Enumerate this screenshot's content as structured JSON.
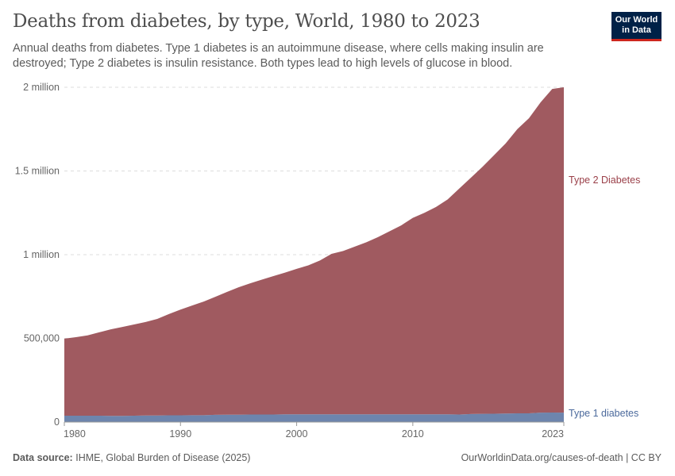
{
  "header": {
    "title": "Deaths from diabetes, by type, World, 1980 to 2023",
    "subtitle": "Annual deaths from diabetes. Type 1 diabetes is an autoimmune disease, where cells making insulin are destroyed; Type 2 diabetes is insulin resistance. Both types lead to high levels of glucose in blood.",
    "logo": "Our World in Data"
  },
  "footer": {
    "source_label": "Data source:",
    "source": "IHME, Global Burden of Disease (2025)",
    "url": "OurWorldinData.org/causes-of-death | CC BY"
  },
  "chart_data": {
    "type": "area",
    "stacked": true,
    "title": "Deaths from diabetes, by type, World, 1980 to 2023",
    "xlim": [
      1980,
      2023
    ],
    "ylim": [
      0,
      2000000
    ],
    "x_ticks": [
      {
        "value": 1980,
        "label": "1980"
      },
      {
        "value": 1990,
        "label": "1990"
      },
      {
        "value": 2000,
        "label": "2000"
      },
      {
        "value": 2010,
        "label": "2010"
      },
      {
        "value": 2023,
        "label": "2023"
      }
    ],
    "y_ticks": [
      {
        "value": 0,
        "label": "0"
      },
      {
        "value": 500000,
        "label": "500,000"
      },
      {
        "value": 1000000,
        "label": "1 million"
      },
      {
        "value": 1500000,
        "label": "1.5 million"
      },
      {
        "value": 2000000,
        "label": "2 million"
      }
    ],
    "grid": "horizontal dashed",
    "legend": "inline-right",
    "x": [
      1980,
      1981,
      1982,
      1983,
      1984,
      1985,
      1986,
      1987,
      1988,
      1989,
      1990,
      1991,
      1992,
      1993,
      1994,
      1995,
      1996,
      1997,
      1998,
      1999,
      2000,
      2001,
      2002,
      2003,
      2004,
      2005,
      2006,
      2007,
      2008,
      2009,
      2010,
      2011,
      2012,
      2013,
      2014,
      2015,
      2016,
      2017,
      2018,
      2019,
      2020,
      2021,
      2022,
      2023
    ],
    "series": [
      {
        "name": "Type 1 diabetes",
        "color": "#6d85ad",
        "label_color": "#4c6a9c",
        "values": [
          38000,
          38000,
          38000,
          38000,
          37000,
          37000,
          38000,
          39000,
          39000,
          40000,
          40000,
          41000,
          41000,
          43000,
          44000,
          44000,
          45000,
          45000,
          45000,
          46000,
          46000,
          46000,
          46000,
          46000,
          46000,
          46000,
          46000,
          46000,
          46000,
          46000,
          46000,
          46000,
          46000,
          46000,
          45000,
          48000,
          49000,
          50000,
          51000,
          52000,
          52000,
          56000,
          57000,
          56000
        ]
      },
      {
        "name": "Type 2 Diabetes",
        "color": "#a05a60",
        "label_color": "#9a3f48",
        "values": [
          460000,
          469000,
          480000,
          498000,
          517000,
          531000,
          545000,
          559000,
          577000,
          605000,
          632000,
          655000,
          679000,
          705000,
          733000,
          761000,
          784000,
          806000,
          827000,
          847000,
          869000,
          890000,
          919000,
          959000,
          976000,
          1002000,
          1028000,
          1059000,
          1094000,
          1129000,
          1174000,
          1204000,
          1239000,
          1284000,
          1350000,
          1412000,
          1476000,
          1545000,
          1614000,
          1698000,
          1763000,
          1854000,
          1933000,
          1944000
        ]
      }
    ]
  }
}
